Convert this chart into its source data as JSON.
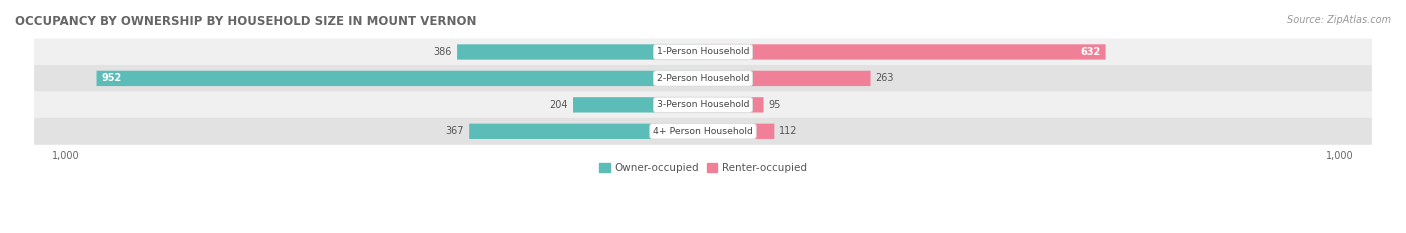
{
  "title": "OCCUPANCY BY OWNERSHIP BY HOUSEHOLD SIZE IN MOUNT VERNON",
  "source": "Source: ZipAtlas.com",
  "categories": [
    "1-Person Household",
    "2-Person Household",
    "3-Person Household",
    "4+ Person Household"
  ],
  "owner_values": [
    386,
    952,
    204,
    367
  ],
  "renter_values": [
    632,
    263,
    95,
    112
  ],
  "max_value": 1000,
  "owner_color": "#5bbcb8",
  "renter_color": "#f08098",
  "row_bg_colors": [
    "#f0f0f0",
    "#e2e2e2"
  ],
  "title_fontsize": 8.5,
  "source_fontsize": 7,
  "bar_label_fontsize": 7,
  "axis_label_fontsize": 7,
  "legend_fontsize": 7.5,
  "bar_height": 0.55
}
